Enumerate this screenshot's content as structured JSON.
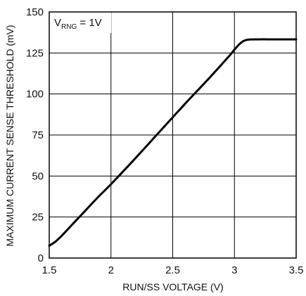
{
  "chart_data": {
    "type": "line",
    "xlabel": "RUN/SS VOLTAGE (V)",
    "ylabel": "MAXIMUM CURRENT SENSE THRESHOLD (mV)",
    "xlim": [
      1.5,
      3.5
    ],
    "ylim": [
      0,
      150
    ],
    "xticks": [
      1.5,
      2,
      2.5,
      3,
      3.5
    ],
    "xtick_labels": [
      "1.5",
      "2",
      "2.5",
      "3",
      "3.5"
    ],
    "yticks": [
      0,
      25,
      50,
      75,
      100,
      125,
      150
    ],
    "ytick_labels": [
      "0",
      "25",
      "50",
      "75",
      "100",
      "125",
      "150"
    ],
    "grid": true,
    "annotation": {
      "main": "V",
      "subscript": "RNG",
      "suffix": " = 1V"
    },
    "series": [
      {
        "x": [
          1.5,
          1.55,
          1.6,
          1.65,
          1.7,
          1.75,
          1.8,
          1.9,
          2.0,
          2.2,
          2.4,
          2.6,
          2.8,
          2.95,
          3.0,
          3.05,
          3.1,
          3.2,
          3.3,
          3.4,
          3.5
        ],
        "y": [
          7.5,
          10,
          13.5,
          17.5,
          21.5,
          25.5,
          29.5,
          37.5,
          45,
          61,
          77.5,
          94,
          110,
          122.5,
          127,
          131,
          133,
          133.3,
          133.3,
          133.3,
          133.3
        ]
      }
    ]
  }
}
